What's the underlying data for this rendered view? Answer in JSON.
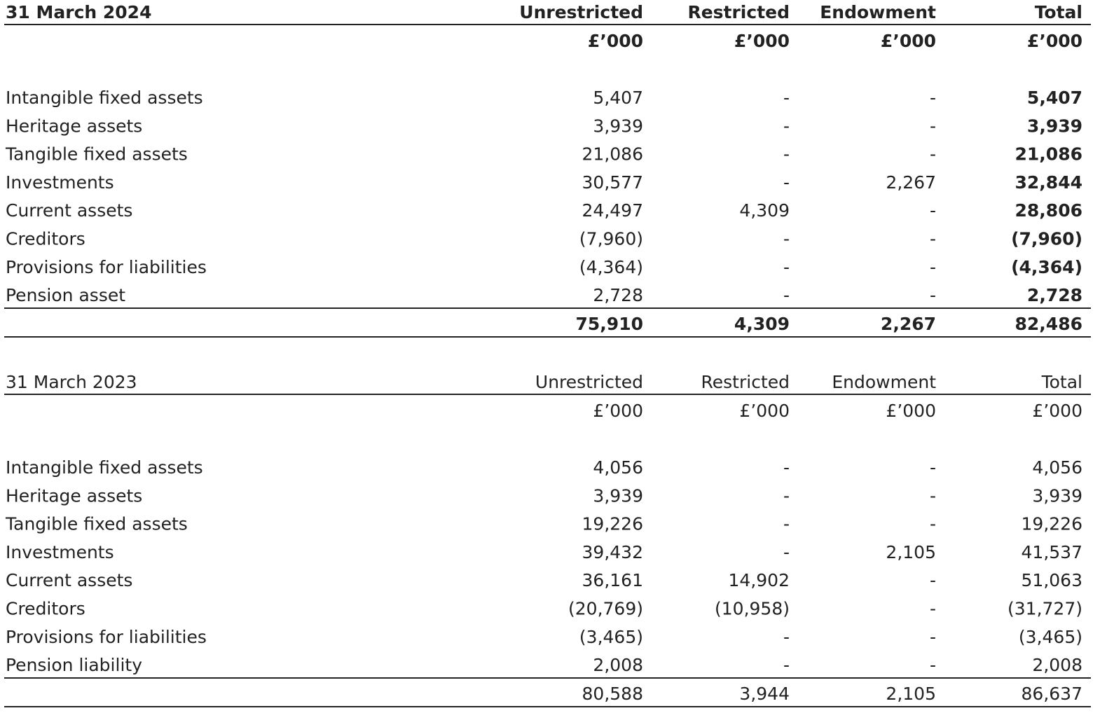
{
  "tables": [
    {
      "title": "31 March 2024",
      "columns": [
        "Unrestricted",
        "Restricted",
        "Endowment",
        "Total"
      ],
      "units": [
        "£’000",
        "£’000",
        "£’000",
        "£’000"
      ],
      "rows": [
        [
          "Intangible fixed assets",
          "5,407",
          "-",
          "-",
          "5,407"
        ],
        [
          "Heritage assets",
          "3,939",
          "-",
          "-",
          "3,939"
        ],
        [
          "Tangible fixed assets",
          "21,086",
          "-",
          "-",
          "21,086"
        ],
        [
          "Investments",
          "30,577",
          "-",
          "2,267",
          "32,844"
        ],
        [
          "Current assets",
          "24,497",
          "4,309",
          "-",
          "28,806"
        ],
        [
          "Creditors",
          "(7,960)",
          "-",
          "-",
          "(7,960)"
        ],
        [
          "Provisions for liabilities",
          "(4,364)",
          "-",
          "-",
          "(4,364)"
        ],
        [
          "Pension asset",
          "2,728",
          "-",
          "-",
          "2,728"
        ]
      ],
      "totals": [
        "75,910",
        "4,309",
        "2,267",
        "82,486"
      ]
    },
    {
      "title": "31 March 2023",
      "columns": [
        "Unrestricted",
        "Restricted",
        "Endowment",
        "Total"
      ],
      "units": [
        "£’000",
        "£’000",
        "£’000",
        "£’000"
      ],
      "rows": [
        [
          "Intangible fixed assets",
          "4,056",
          "-",
          "-",
          "4,056"
        ],
        [
          "Heritage assets",
          "3,939",
          "-",
          "-",
          "3,939"
        ],
        [
          "Tangible fixed assets",
          "19,226",
          "-",
          "-",
          "19,226"
        ],
        [
          "Investments",
          "39,432",
          "-",
          "2,105",
          "41,537"
        ],
        [
          "Current assets",
          "36,161",
          "14,902",
          "-",
          "51,063"
        ],
        [
          "Creditors",
          "(20,769)",
          "(10,958)",
          "-",
          "(31,727)"
        ],
        [
          "Provisions for liabilities",
          "(3,465)",
          "-",
          "-",
          "(3,465)"
        ],
        [
          "Pension liability",
          "2,008",
          "-",
          "-",
          "2,008"
        ]
      ],
      "totals": [
        "80,588",
        "3,944",
        "2,105",
        "86,637"
      ]
    }
  ]
}
